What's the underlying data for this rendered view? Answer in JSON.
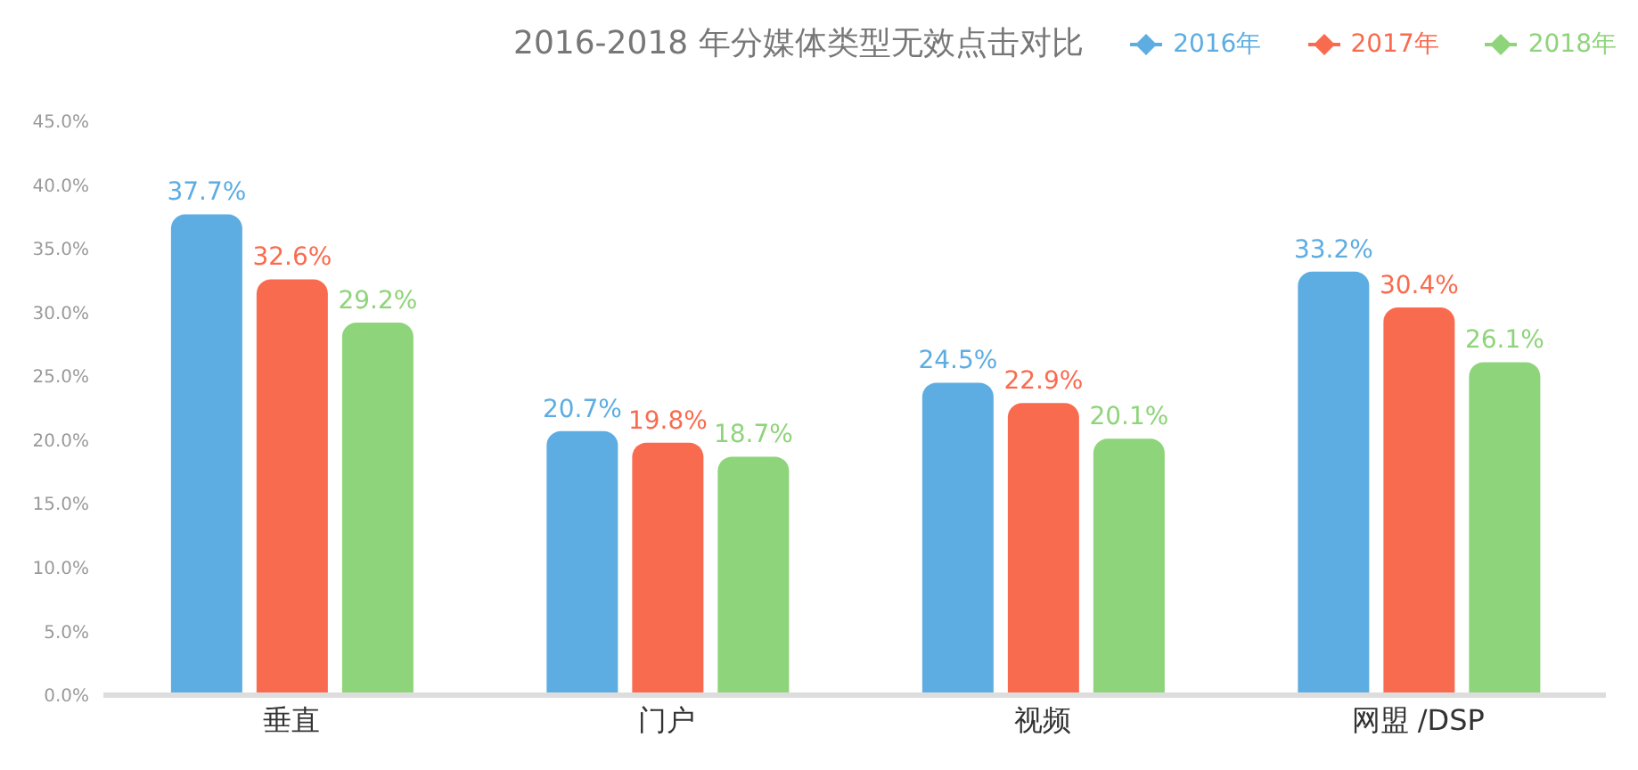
{
  "chart_data": {
    "type": "bar",
    "title": "2016-2018 年分媒体类型无效点击对比",
    "categories": [
      "垂直",
      "门户",
      "视频",
      "网盟 /DSP"
    ],
    "series": [
      {
        "name": "2016年",
        "color": "#5dade2",
        "values": [
          37.7,
          20.7,
          24.5,
          33.2
        ],
        "value_labels": [
          "37.7%",
          "20.7%",
          "24.5%",
          "33.2%"
        ]
      },
      {
        "name": "2017年",
        "color": "#f96b4f",
        "values": [
          32.6,
          19.8,
          22.9,
          30.4
        ],
        "value_labels": [
          "32.6%",
          "19.8%",
          "22.9%",
          "30.4%"
        ]
      },
      {
        "name": "2018年",
        "color": "#8ed47a",
        "values": [
          29.2,
          18.7,
          20.1,
          26.1
        ],
        "value_labels": [
          "29.2%",
          "18.7%",
          "20.1%",
          "26.1%"
        ]
      }
    ],
    "ylim": [
      0,
      45
    ],
    "yticks": [
      {
        "value": 0,
        "label": "0.0%"
      },
      {
        "value": 5,
        "label": "5.0%"
      },
      {
        "value": 10,
        "label": "10.0%"
      },
      {
        "value": 15,
        "label": "15.0%"
      },
      {
        "value": 20,
        "label": "20.0%"
      },
      {
        "value": 25,
        "label": "25.0%"
      },
      {
        "value": 30,
        "label": "30.0%"
      },
      {
        "value": 35,
        "label": "35.0%"
      },
      {
        "value": 40,
        "label": "40.0%"
      },
      {
        "value": 45,
        "label": "45.0%"
      }
    ],
    "grid": false,
    "legend": "top right",
    "marker": "diamond"
  }
}
